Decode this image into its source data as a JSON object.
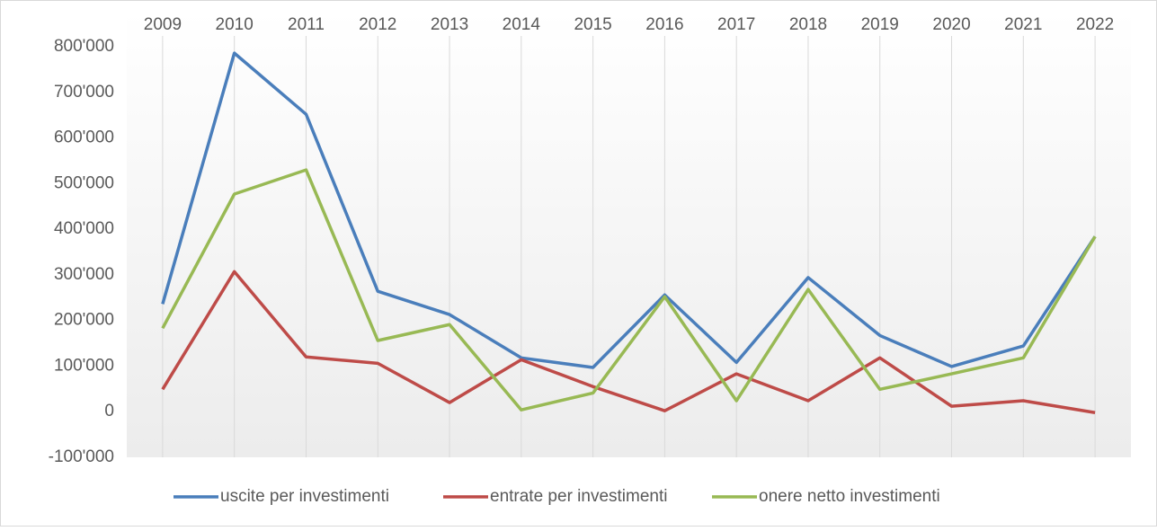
{
  "chart_data": {
    "type": "line",
    "categories": [
      "2009",
      "2010",
      "2011",
      "2012",
      "2013",
      "2014",
      "2015",
      "2016",
      "2017",
      "2018",
      "2019",
      "2020",
      "2021",
      "2022"
    ],
    "series": [
      {
        "name": "uscite per investimenti",
        "color": "#4a7ebb",
        "values": [
          236000,
          786000,
          652000,
          264000,
          213000,
          118000,
          97000,
          256000,
          108000,
          294000,
          167000,
          99000,
          144000,
          384000
        ]
      },
      {
        "name": "entrate per investimenti",
        "color": "#be4b48",
        "values": [
          49000,
          307000,
          120000,
          106000,
          20000,
          114000,
          55000,
          2000,
          83000,
          24000,
          118000,
          12000,
          24000,
          -2000
        ]
      },
      {
        "name": "onere netto investimenti",
        "color": "#98b954",
        "values": [
          183000,
          477000,
          530000,
          156000,
          191000,
          4000,
          41000,
          252000,
          24000,
          268000,
          49000,
          83000,
          118000,
          384000
        ]
      }
    ],
    "ylim": [
      -100000,
      800000
    ],
    "yticks": [
      {
        "value": -100000,
        "label": "-100'000"
      },
      0,
      {
        "value": 100000,
        "label": "100'000"
      },
      {
        "value": 200000,
        "label": "200'000"
      },
      {
        "value": 300000,
        "label": "300'000"
      },
      {
        "value": 400000,
        "label": "400'000"
      },
      {
        "value": 500000,
        "label": "500'000"
      },
      {
        "value": 600000,
        "label": "600'000"
      },
      {
        "value": 700000,
        "label": "700'000"
      },
      {
        "value": 800000,
        "label": "800'000"
      }
    ],
    "legend": "bottom"
  }
}
